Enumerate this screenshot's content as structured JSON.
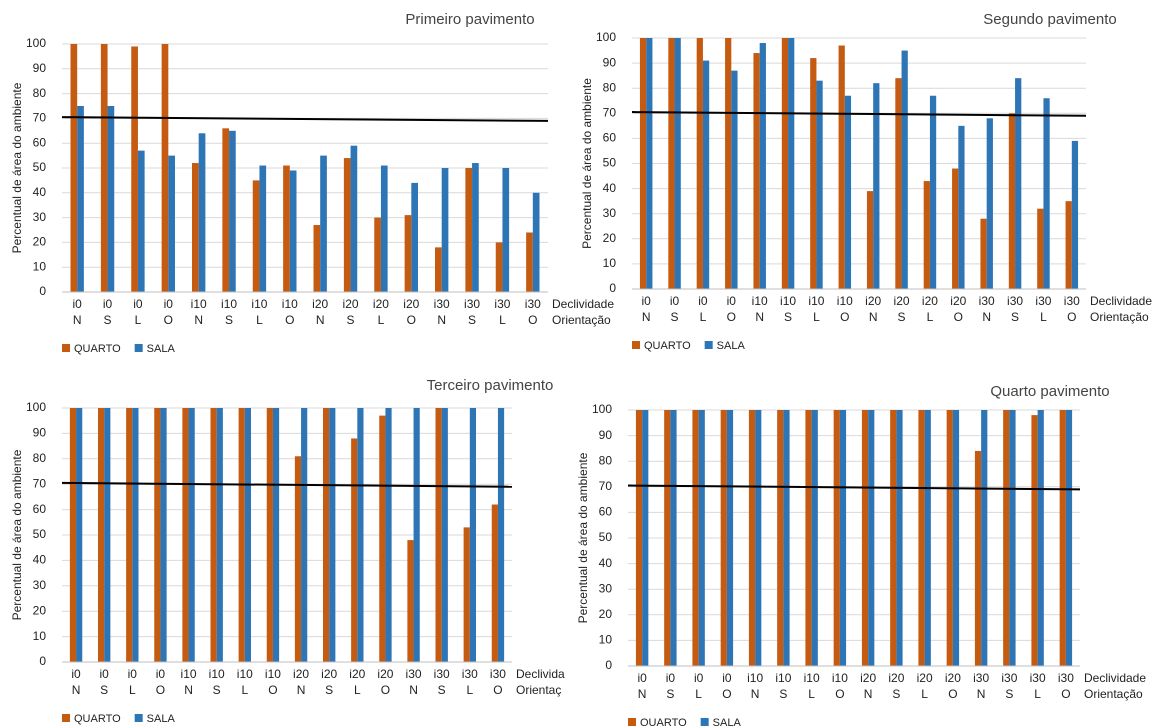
{
  "chart_data": [
    {
      "type": "bar",
      "title": "Primeiro pavimento",
      "y_label": "Percentual de área do ambiente",
      "categories": [
        [
          "i0",
          "N"
        ],
        [
          "i0",
          "S"
        ],
        [
          "i0",
          "L"
        ],
        [
          "i0",
          "O"
        ],
        [
          "i10",
          "N"
        ],
        [
          "i10",
          "S"
        ],
        [
          "i10",
          "L"
        ],
        [
          "i10",
          "O"
        ],
        [
          "i20",
          "N"
        ],
        [
          "i20",
          "S"
        ],
        [
          "i20",
          "L"
        ],
        [
          "i20",
          "O"
        ],
        [
          "i30",
          "N"
        ],
        [
          "i30",
          "S"
        ],
        [
          "i30",
          "L"
        ],
        [
          "i30",
          "O"
        ]
      ],
      "category_rows": [
        "Declividade",
        "Orientação"
      ],
      "series": [
        {
          "name": "QUARTO",
          "color": "#c55a11",
          "values": [
            100,
            100,
            99,
            100,
            52,
            66,
            45,
            51,
            27,
            54,
            30,
            31,
            18,
            50,
            20,
            24
          ]
        },
        {
          "name": "SALA",
          "color": "#2e75b6",
          "values": [
            75,
            75,
            57,
            55,
            64,
            65,
            51,
            49,
            55,
            59,
            51,
            44,
            50,
            52,
            50,
            40
          ]
        }
      ],
      "reference_line": {
        "y_start": 70.5,
        "y_end": 69,
        "color": "#000000"
      },
      "ylim": [
        0,
        100
      ],
      "yticks": [
        0,
        10,
        20,
        30,
        40,
        50,
        60,
        70,
        80,
        90,
        100
      ],
      "grid": true
    },
    {
      "type": "bar",
      "title": "Segundo pavimento",
      "y_label": "Percentual de área do ambiente",
      "categories": [
        [
          "i0",
          "N"
        ],
        [
          "i0",
          "S"
        ],
        [
          "i0",
          "L"
        ],
        [
          "i0",
          "O"
        ],
        [
          "i10",
          "N"
        ],
        [
          "i10",
          "S"
        ],
        [
          "i10",
          "L"
        ],
        [
          "i10",
          "O"
        ],
        [
          "i20",
          "N"
        ],
        [
          "i20",
          "S"
        ],
        [
          "i20",
          "L"
        ],
        [
          "i20",
          "O"
        ],
        [
          "i30",
          "N"
        ],
        [
          "i30",
          "S"
        ],
        [
          "i30",
          "L"
        ],
        [
          "i30",
          "O"
        ]
      ],
      "category_rows": [
        "Declividade",
        "Orientação"
      ],
      "series": [
        {
          "name": "QUARTO",
          "color": "#c55a11",
          "values": [
            100,
            100,
            100,
            100,
            94,
            100,
            92,
            97,
            39,
            84,
            43,
            48,
            28,
            70,
            32,
            35
          ]
        },
        {
          "name": "SALA",
          "color": "#2e75b6",
          "values": [
            100,
            100,
            91,
            87,
            98,
            100,
            83,
            77,
            82,
            95,
            77,
            65,
            68,
            84,
            76,
            59
          ]
        }
      ],
      "reference_line": {
        "y_start": 70.5,
        "y_end": 69,
        "color": "#000000"
      },
      "ylim": [
        0,
        100
      ],
      "yticks": [
        0,
        10,
        20,
        30,
        40,
        50,
        60,
        70,
        80,
        90,
        100
      ],
      "grid": true
    },
    {
      "type": "bar",
      "title": "Terceiro pavimento",
      "y_label": "Percentual de área do ambiente",
      "categories": [
        [
          "i0",
          "N"
        ],
        [
          "i0",
          "S"
        ],
        [
          "i0",
          "L"
        ],
        [
          "i0",
          "O"
        ],
        [
          "i10",
          "N"
        ],
        [
          "i10",
          "S"
        ],
        [
          "i10",
          "L"
        ],
        [
          "i10",
          "O"
        ],
        [
          "i20",
          "N"
        ],
        [
          "i20",
          "S"
        ],
        [
          "i20",
          "L"
        ],
        [
          "i20",
          "O"
        ],
        [
          "i30",
          "N"
        ],
        [
          "i30",
          "S"
        ],
        [
          "i30",
          "L"
        ],
        [
          "i30",
          "O"
        ]
      ],
      "category_rows": [
        "Declivida",
        "Orientaç"
      ],
      "series": [
        {
          "name": "QUARTO",
          "color": "#c55a11",
          "values": [
            100,
            100,
            100,
            100,
            100,
            100,
            100,
            100,
            81,
            100,
            88,
            97,
            48,
            100,
            53,
            62
          ]
        },
        {
          "name": "SALA",
          "color": "#2e75b6",
          "values": [
            100,
            100,
            100,
            100,
            100,
            100,
            100,
            100,
            100,
            100,
            100,
            100,
            100,
            100,
            100,
            100
          ]
        }
      ],
      "reference_line": {
        "y_start": 70.5,
        "y_end": 69,
        "color": "#000000"
      },
      "ylim": [
        0,
        100
      ],
      "yticks": [
        0,
        10,
        20,
        30,
        40,
        50,
        60,
        70,
        80,
        90,
        100
      ],
      "grid": true
    },
    {
      "type": "bar",
      "title": "Quarto pavimento",
      "y_label": "Percentual de área do ambiente",
      "categories": [
        [
          "i0",
          "N"
        ],
        [
          "i0",
          "S"
        ],
        [
          "i0",
          "L"
        ],
        [
          "i0",
          "O"
        ],
        [
          "i10",
          "N"
        ],
        [
          "i10",
          "S"
        ],
        [
          "i10",
          "L"
        ],
        [
          "i10",
          "O"
        ],
        [
          "i20",
          "N"
        ],
        [
          "i20",
          "S"
        ],
        [
          "i20",
          "L"
        ],
        [
          "i20",
          "O"
        ],
        [
          "i30",
          "N"
        ],
        [
          "i30",
          "S"
        ],
        [
          "i30",
          "L"
        ],
        [
          "i30",
          "O"
        ]
      ],
      "category_rows": [
        "Declividade",
        "Orientação"
      ],
      "series": [
        {
          "name": "QUARTO",
          "color": "#c55a11",
          "values": [
            100,
            100,
            100,
            100,
            100,
            100,
            100,
            100,
            100,
            100,
            100,
            100,
            84,
            100,
            98,
            100
          ]
        },
        {
          "name": "SALA",
          "color": "#2e75b6",
          "values": [
            100,
            100,
            100,
            100,
            100,
            100,
            100,
            100,
            100,
            100,
            100,
            100,
            100,
            100,
            100,
            100
          ]
        }
      ],
      "reference_line": {
        "y_start": 70.5,
        "y_end": 69,
        "color": "#000000"
      },
      "ylim": [
        0,
        100
      ],
      "yticks": [
        0,
        10,
        20,
        30,
        40,
        50,
        60,
        70,
        80,
        90,
        100
      ],
      "grid": true
    }
  ]
}
